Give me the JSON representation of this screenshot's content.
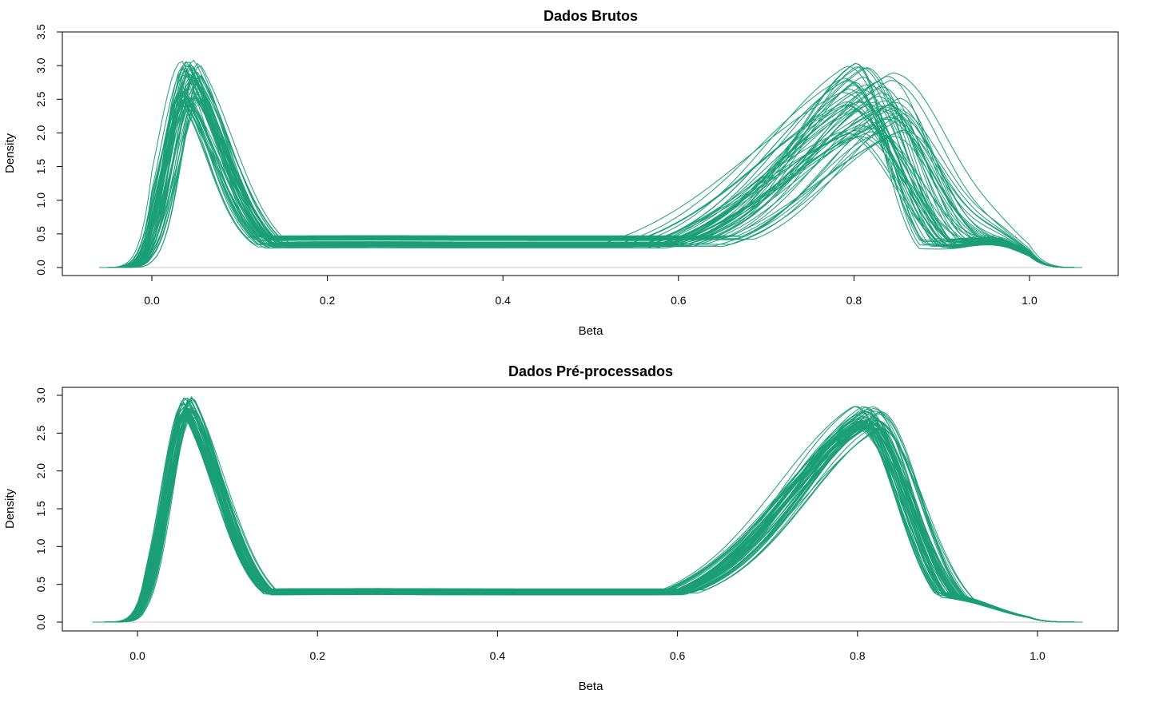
{
  "chart_data": [
    {
      "type": "line",
      "title": "Dados Brutos",
      "xlabel": "Beta",
      "ylabel": "Density",
      "xlim": [
        -0.06,
        1.06
      ],
      "ylim": [
        0,
        3.5
      ],
      "xticks": [
        0.0,
        0.2,
        0.4,
        0.6,
        0.8,
        1.0
      ],
      "xtick_labels": [
        "0.0",
        "0.2",
        "0.4",
        "0.6",
        "0.8",
        "1.0"
      ],
      "yticks": [
        0.0,
        0.5,
        1.0,
        1.5,
        2.0,
        2.5,
        3.0,
        3.5
      ],
      "ytick_labels": [
        "0.0",
        "0.5",
        "1.0",
        "1.5",
        "2.0",
        "2.5",
        "3.0",
        "3.5"
      ],
      "series_count": 60,
      "color": "#1b9e77",
      "x_range": [
        -0.06,
        1.06
      ],
      "profile": {
        "peak1_x": 0.045,
        "peak1_height": 2.75,
        "trough_x": 0.32,
        "trough_height": 0.38,
        "peak2_x": 0.82,
        "peak2_height": 2.5,
        "shoulder_x": 0.97,
        "shoulder_height": 0.25
      },
      "variation": "high"
    },
    {
      "type": "line",
      "title": "Dados Pré-processados",
      "xlabel": "Beta",
      "ylabel": "Density",
      "xlim": [
        -0.06,
        1.06
      ],
      "ylim": [
        0,
        3.0
      ],
      "xticks": [
        0.0,
        0.2,
        0.4,
        0.6,
        0.8,
        1.0
      ],
      "xtick_labels": [
        "0.0",
        "0.2",
        "0.4",
        "0.6",
        "0.8",
        "1.0"
      ],
      "yticks": [
        0.0,
        0.5,
        1.0,
        1.5,
        2.0,
        2.5,
        3.0
      ],
      "ytick_labels": [
        "0.0",
        "0.5",
        "1.0",
        "1.5",
        "2.0",
        "2.5",
        "3.0"
      ],
      "series_count": 60,
      "color": "#1b9e77",
      "x_range": [
        -0.05,
        1.05
      ],
      "profile": {
        "peak1_x": 0.057,
        "peak1_height": 2.85,
        "trough_x": 0.33,
        "trough_height": 0.4,
        "peak2_x": 0.81,
        "peak2_height": 2.7,
        "shoulder_x": 0.97,
        "shoulder_height": 0.0
      },
      "variation": "low"
    }
  ]
}
